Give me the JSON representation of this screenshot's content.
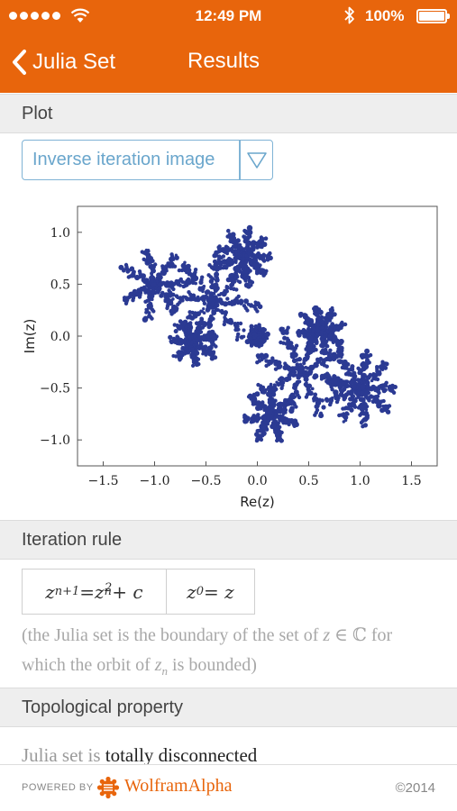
{
  "status_bar": {
    "time": "12:49 PM",
    "battery": "100%"
  },
  "nav": {
    "back_label": "Julia Set",
    "title": "Results"
  },
  "sections": {
    "plot": "Plot",
    "iteration_rule": "Iteration rule",
    "topological": "Topological property"
  },
  "plot_select": {
    "selected": "Inverse iteration image"
  },
  "chart_data": {
    "type": "scatter",
    "xlabel": "Re(z)",
    "ylabel": "Im(z)",
    "xlim": [
      -1.75,
      1.75
    ],
    "ylim": [
      -1.25,
      1.25
    ],
    "x_ticks": [
      "−1.5",
      "−1.0",
      "−0.5",
      "0.0",
      "0.5",
      "1.0",
      "1.5"
    ],
    "y_ticks": [
      "1.0",
      "0.5",
      "0.0",
      "−0.5",
      "−1.0"
    ],
    "grid": false,
    "point_color": "#2b3a93",
    "clusters": [
      {
        "cx": -1.0,
        "cy": 0.5,
        "r": 0.34
      },
      {
        "cx": -0.43,
        "cy": 0.34,
        "r": 0.45
      },
      {
        "cx": -0.13,
        "cy": 0.76,
        "r": 0.26
      },
      {
        "cx": -0.62,
        "cy": -0.06,
        "r": 0.22
      },
      {
        "cx": 0.43,
        "cy": -0.34,
        "r": 0.45
      },
      {
        "cx": 1.0,
        "cy": -0.5,
        "r": 0.34
      },
      {
        "cx": 0.13,
        "cy": -0.76,
        "r": 0.26
      },
      {
        "cx": 0.62,
        "cy": 0.06,
        "r": 0.22
      },
      {
        "cx": 0.0,
        "cy": 0.0,
        "r": 0.08
      }
    ]
  },
  "iteration_rule": {
    "rule_lhs_base": "z",
    "rule_lhs_sub": "n+1",
    "rule_eq": " = ",
    "rule_rhs_base": "z",
    "rule_rhs_sub": "n",
    "rule_rhs_sup": "2",
    "rule_plus": " + c",
    "init_base": "z",
    "init_sub": "0",
    "init_eq": " = z",
    "note_part1": "(the Julia set is the boundary of the set of ",
    "note_z": "z",
    "note_part2": " ∈ ℂ for which the orbit of ",
    "note_zn_base": "z",
    "note_zn_sub": "n",
    "note_part3": " is bounded)"
  },
  "topological": {
    "prefix": "Julia set is ",
    "value": "totally disconnected"
  },
  "footer": {
    "powered_by": "POWERED BY",
    "brand": "WolframAlpha",
    "copyright": "©2014"
  },
  "colors": {
    "brand_orange": "#e8650c",
    "link_blue": "#6aa6cc"
  }
}
